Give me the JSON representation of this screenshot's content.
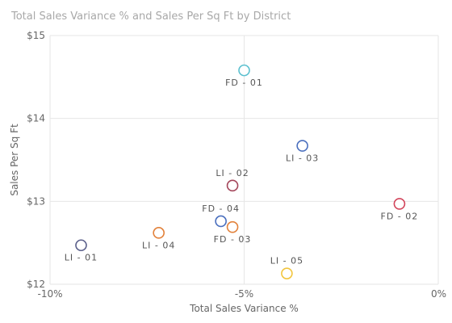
{
  "chart_data": {
    "type": "scatter",
    "title": "Total Sales Variance % and Sales Per Sq Ft by District",
    "xlabel": "Total Sales Variance %",
    "ylabel": "Sales Per Sq Ft",
    "xlim": [
      -10,
      0
    ],
    "ylim": [
      12,
      15
    ],
    "x_ticks": [
      {
        "value": -10,
        "label": "-10%"
      },
      {
        "value": -5,
        "label": "-5%"
      },
      {
        "value": 0,
        "label": "0%"
      }
    ],
    "y_ticks": [
      {
        "value": 12,
        "label": "$12"
      },
      {
        "value": 13,
        "label": "$13"
      },
      {
        "value": 14,
        "label": "$14"
      },
      {
        "value": 15,
        "label": "$15"
      }
    ],
    "grid": true,
    "points": [
      {
        "label": "FD - 01",
        "x": -5.0,
        "y": 14.58,
        "color": "#5bc0cf",
        "label_pos": "below"
      },
      {
        "label": "LI - 03",
        "x": -3.5,
        "y": 13.67,
        "color": "#4a6fbe",
        "label_pos": "below"
      },
      {
        "label": "LI - 02",
        "x": -5.3,
        "y": 13.19,
        "color": "#a3455a",
        "label_pos": "above"
      },
      {
        "label": "FD - 02",
        "x": -1.0,
        "y": 12.97,
        "color": "#d2445a",
        "label_pos": "below"
      },
      {
        "label": "FD - 04",
        "x": -5.6,
        "y": 12.76,
        "color": "#4a6fbe",
        "label_pos": "above"
      },
      {
        "label": "FD - 03",
        "x": -5.3,
        "y": 12.69,
        "color": "#e2813a",
        "label_pos": "below"
      },
      {
        "label": "LI - 04",
        "x": -7.2,
        "y": 12.62,
        "color": "#e2813a",
        "label_pos": "below"
      },
      {
        "label": "LI - 01",
        "x": -9.2,
        "y": 12.47,
        "color": "#5a5f8a",
        "label_pos": "below"
      },
      {
        "label": "LI - 05",
        "x": -3.9,
        "y": 12.13,
        "color": "#f2c53d",
        "label_pos": "above"
      }
    ]
  }
}
